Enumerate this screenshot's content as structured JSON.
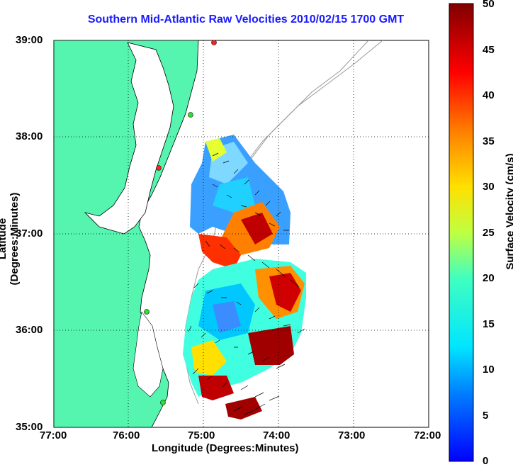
{
  "title": "Southern Mid-Atlantic Raw Velocities 2010/02/15 1700 GMT",
  "xlabel": "Longitude (Degrees:Minutes)",
  "ylabel": "Latitude (Degrees:Minutes)",
  "colorbar_label": "Surface Velocity (cm/s)",
  "x_ticks": [
    "77:00",
    "76:00",
    "75:00",
    "74:00",
    "73:00",
    "72:00"
  ],
  "y_ticks": [
    "39:00",
    "38:00",
    "37:00",
    "36:00",
    "35:00"
  ],
  "colorbar_ticks": [
    "50",
    "45",
    "40",
    "35",
    "30",
    "25",
    "20",
    "15",
    "10",
    "5",
    "0"
  ],
  "map": {
    "lon_range": [
      -77,
      -72
    ],
    "lat_range": [
      35,
      39
    ],
    "land_color": "#55f5b0",
    "colormap": "jet",
    "velocity_range_cm_s": [
      0,
      50
    ]
  }
}
